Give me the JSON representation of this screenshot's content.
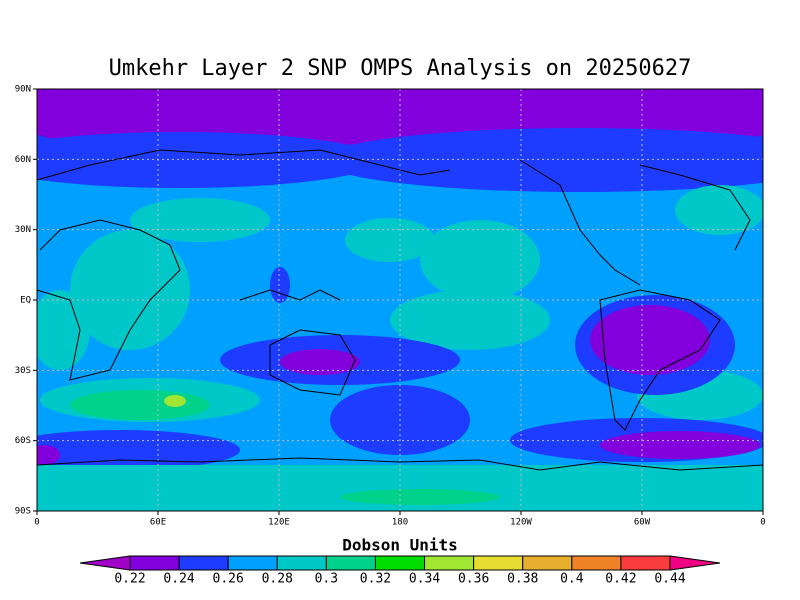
{
  "title": "Umkehr Layer 2 SNP OMPS Analysis on 20250627",
  "lat_labels": [
    "90N",
    "60N",
    "30N",
    "EQ",
    "30S",
    "60S",
    "90S"
  ],
  "lon_labels": [
    "0",
    "60E",
    "120E",
    "180",
    "120W",
    "60W",
    "0"
  ],
  "colorbar": {
    "title": "Dobson Units",
    "levels": [
      0.22,
      0.24,
      0.26,
      0.28,
      0.3,
      0.32,
      0.34,
      0.36,
      0.38,
      0.4,
      0.42,
      0.44
    ],
    "colors": [
      "#a000c8",
      "#8200dc",
      "#1e3cff",
      "#00a0ff",
      "#00c8c8",
      "#00d28c",
      "#00dc00",
      "#a0e632",
      "#e6dc32",
      "#e6af2d",
      "#f08228",
      "#fa3c3c",
      "#f00082"
    ]
  }
}
